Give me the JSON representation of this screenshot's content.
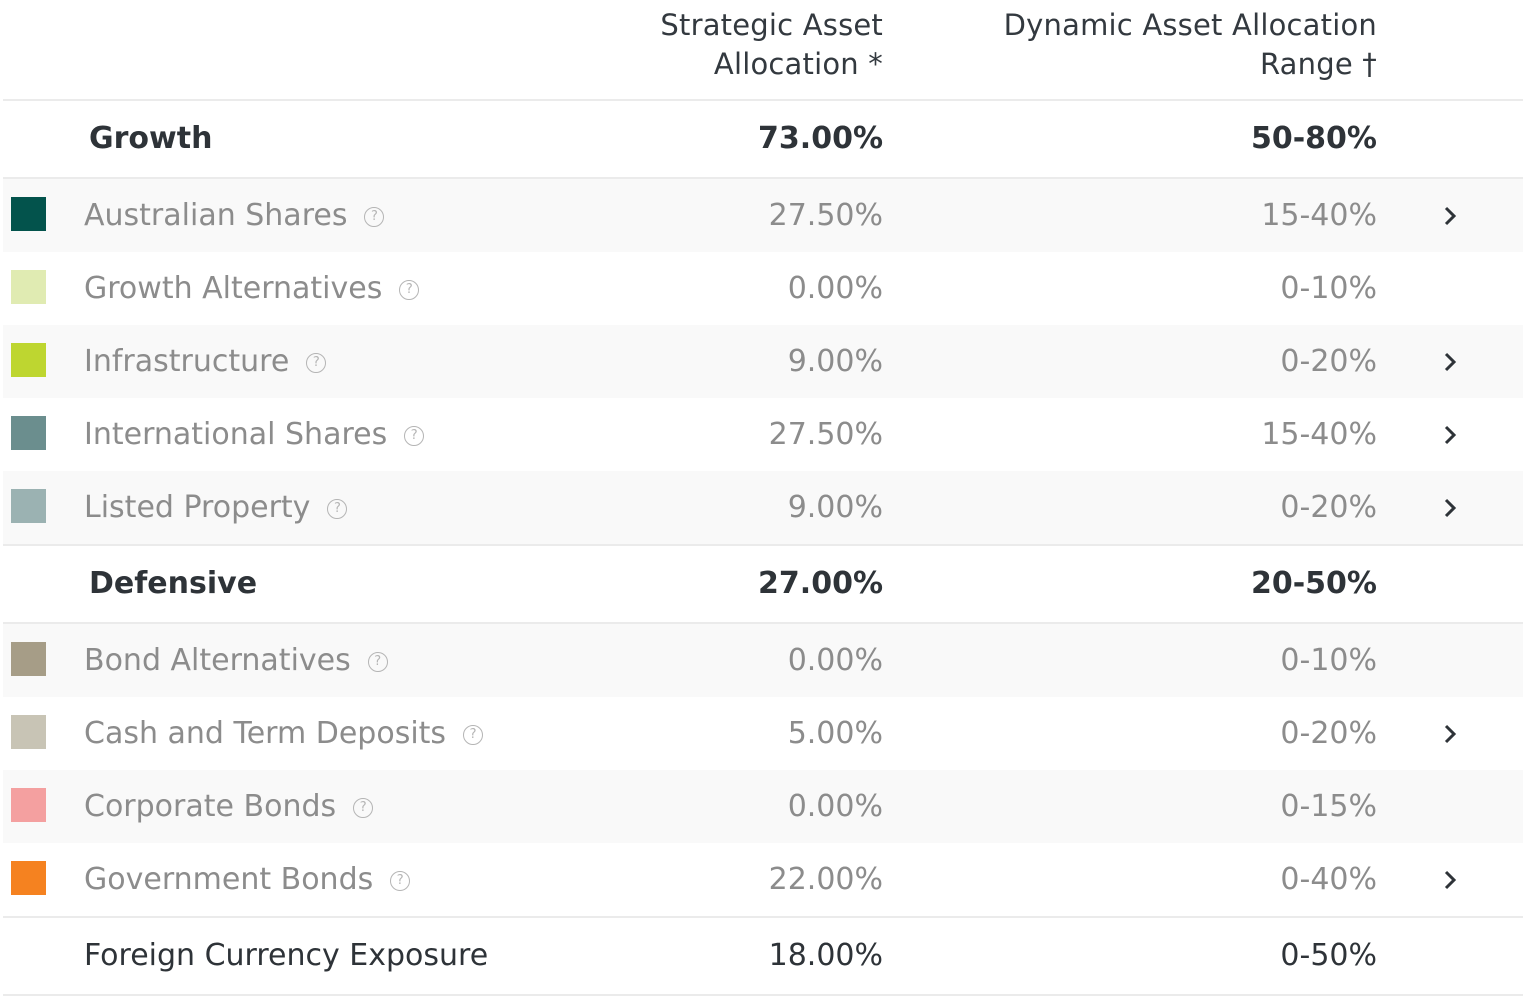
{
  "header": {
    "sa_line1": "Strategic Asset",
    "sa_line2": "Allocation *",
    "daa_line1": "Dynamic Asset Allocation",
    "daa_line2": "Range †"
  },
  "groups": {
    "growth": {
      "label": "Growth",
      "sa": "73.00%",
      "daa": "50-80%"
    },
    "defensive": {
      "label": "Defensive",
      "sa": "27.00%",
      "daa": "20-50%"
    }
  },
  "assets": [
    {
      "label": "Australian Shares",
      "sa": "27.50%",
      "daa": "15-40%",
      "color": "#03534c",
      "expandable": true
    },
    {
      "label": "Growth Alternatives",
      "sa": "0.00%",
      "daa": "0-10%",
      "color": "#e0ebb2",
      "expandable": false
    },
    {
      "label": "Infrastructure",
      "sa": "9.00%",
      "daa": "0-20%",
      "color": "#bed630",
      "expandable": true
    },
    {
      "label": "International Shares",
      "sa": "27.50%",
      "daa": "15-40%",
      "color": "#6b8e8e",
      "expandable": true
    },
    {
      "label": "Listed Property",
      "sa": "9.00%",
      "daa": "0-20%",
      "color": "#9bb2b2",
      "expandable": true
    },
    {
      "label": "Bond Alternatives",
      "sa": "0.00%",
      "daa": "0-10%",
      "color": "#a69d87",
      "expandable": false
    },
    {
      "label": "Cash and Term Deposits",
      "sa": "5.00%",
      "daa": "0-20%",
      "color": "#c8c4b5",
      "expandable": true
    },
    {
      "label": "Corporate Bonds",
      "sa": "0.00%",
      "daa": "0-15%",
      "color": "#f4a0a0",
      "expandable": false
    },
    {
      "label": "Government Bonds",
      "sa": "22.00%",
      "daa": "0-40%",
      "color": "#f58220",
      "expandable": true
    }
  ],
  "total": {
    "label": "Foreign Currency Exposure",
    "sa": "18.00%",
    "daa": "0-50%"
  },
  "icons": {
    "help": "question-circle-icon",
    "expand": "chevron-right-icon"
  },
  "help_glyph": "?"
}
